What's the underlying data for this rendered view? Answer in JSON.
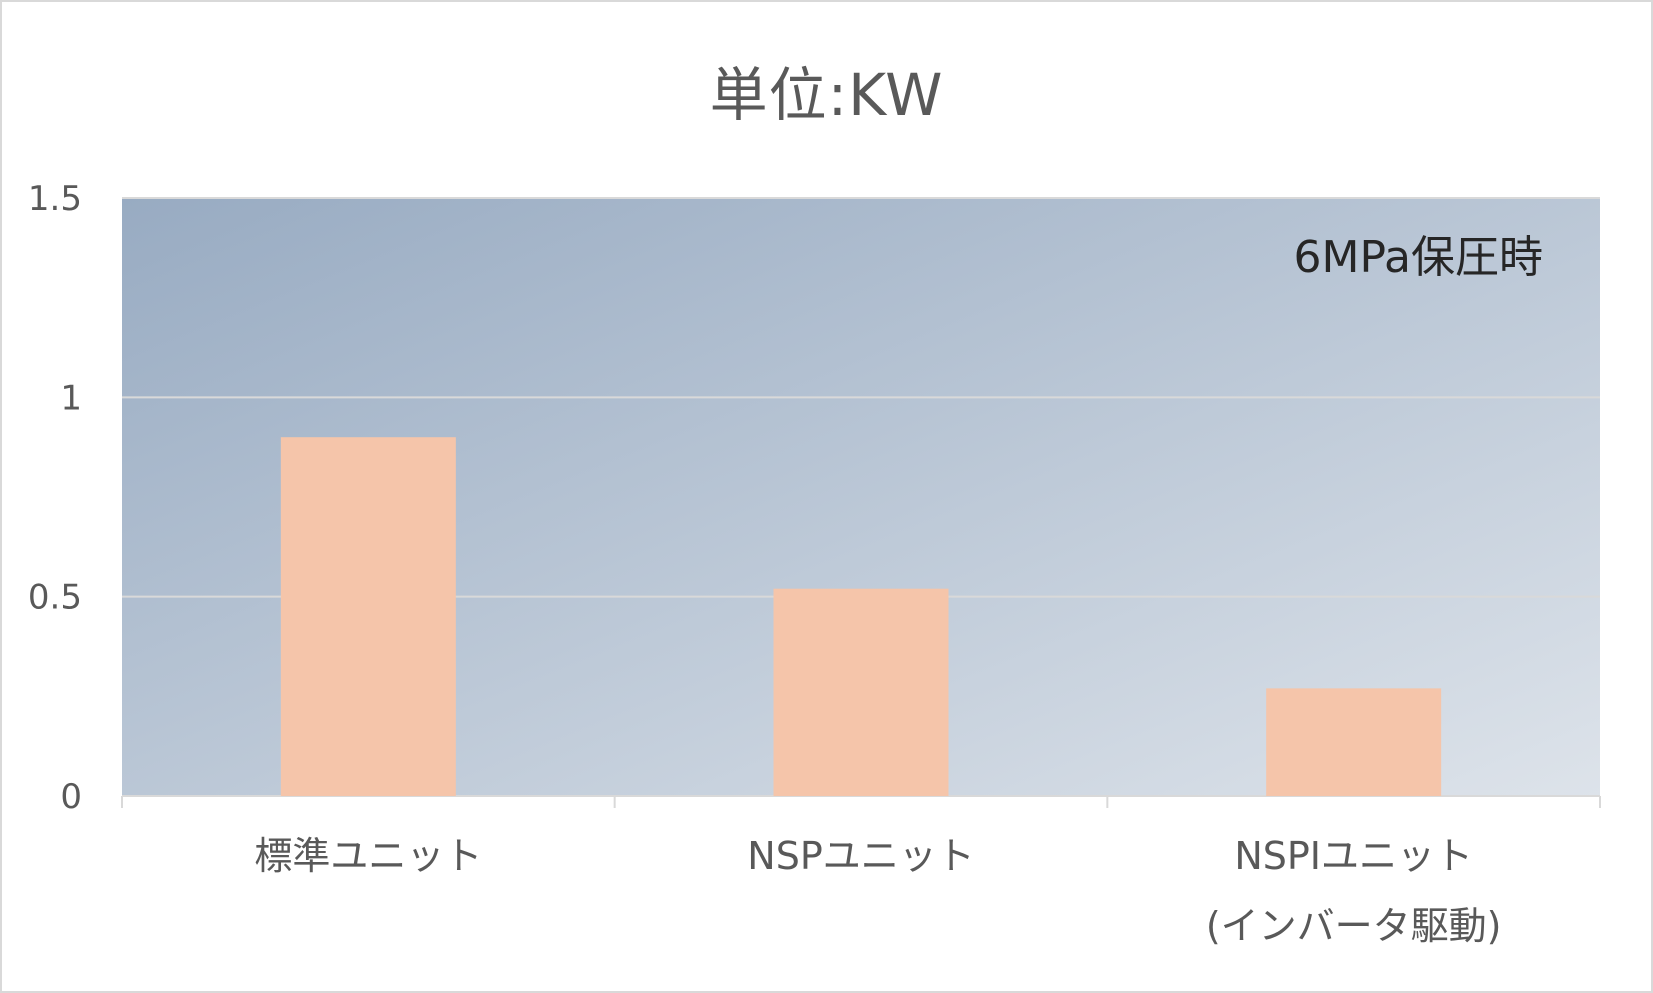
{
  "chart_data": {
    "type": "bar",
    "title": "単位:KW",
    "annotation": "6MPa保圧時",
    "categories": [
      "標準ユニット",
      "NSPユニット",
      "NSPIユニット(インバータ駆動)"
    ],
    "category_lines": [
      [
        "標準ユニット"
      ],
      [
        "NSPユニット"
      ],
      [
        "NSPIユニット",
        "(インバータ駆動)"
      ]
    ],
    "values": [
      0.9,
      0.52,
      0.27
    ],
    "y_ticks": [
      "0",
      "0.5",
      "1",
      "1.5"
    ],
    "ylim": [
      0,
      1.5
    ],
    "grid": true,
    "colors": {
      "bar": "#f5c5aa",
      "gridline": "#d9d9d9",
      "plot_bg_start": "#98abc2",
      "plot_bg_end": "#dde3ea",
      "text": "#595959",
      "annotation_text": "#262626"
    }
  }
}
